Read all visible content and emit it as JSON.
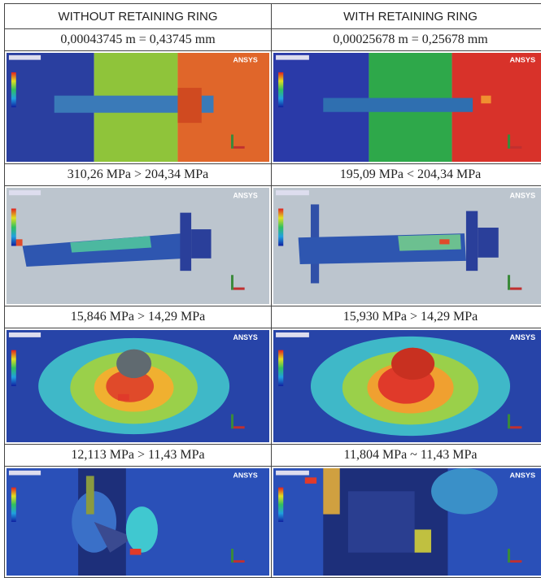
{
  "table": {
    "header": [
      "WITHOUT RETAINING RING",
      "WITH RETAINING RING"
    ],
    "rows": [
      [
        "0,00043745 m = 0,43745 mm",
        "0,00025678 m = 0,25678 mm"
      ],
      [
        "310,26 MPa > 204,34 MPa",
        "195,09 MPa < 204,34 MPa"
      ],
      [
        "15,846 MPa > 14,29 MPa",
        "15,930 MPa > 14,29 MPa"
      ],
      [
        "12,113 MPa > 11,43 MPa",
        "11,804 MPa ~ 11,43 MPa"
      ]
    ]
  },
  "image_logo": "ANSYS"
}
